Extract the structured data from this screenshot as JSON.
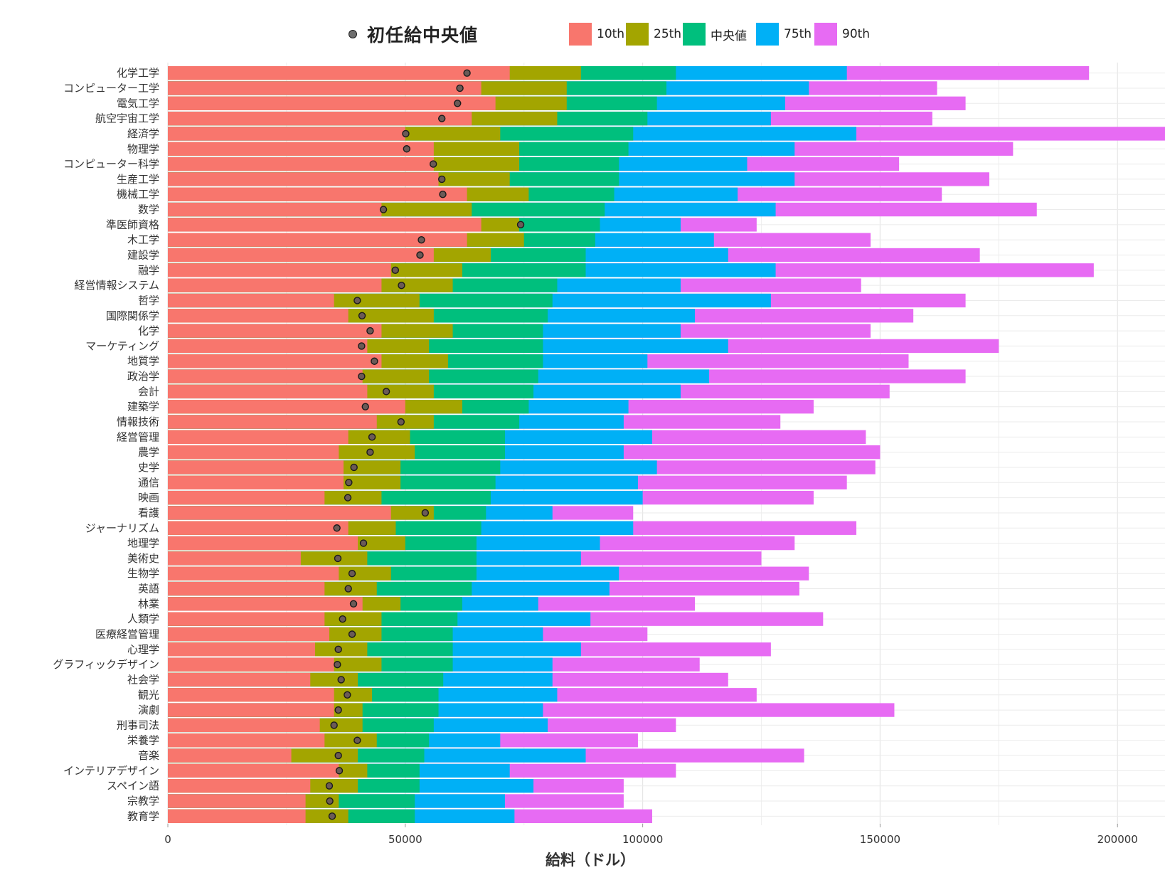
{
  "legend": {
    "dot_label": "初任給中央値",
    "items": [
      {
        "label": "10th",
        "color": "#F8766D"
      },
      {
        "label": "25th",
        "color": "#A3A500"
      },
      {
        "label": "中央値",
        "color": "#00BF7D"
      },
      {
        "label": "75th",
        "color": "#00B0F6"
      },
      {
        "label": "90th",
        "color": "#E76BF3"
      }
    ]
  },
  "chart_data": {
    "type": "bar",
    "orientation": "horizontal",
    "stacked": "overlapping-percentiles",
    "xlabel": "給料（ドル）",
    "ylabel": "",
    "xlim": [
      0,
      210000
    ],
    "x_ticks": [
      "0",
      "50000",
      "100000",
      "150000",
      "200000"
    ],
    "grid": true,
    "legend_position": "top",
    "series_names": [
      "10th",
      "25th",
      "中央値",
      "75th",
      "90th",
      "初任給中央値"
    ],
    "rows": [
      {
        "major": "化学工学",
        "p10": 72000,
        "p25": 87000,
        "p50": 107000,
        "p75": 143000,
        "p90": 194000,
        "start": 63000
      },
      {
        "major": "コンピューター工学",
        "p10": 66000,
        "p25": 84000,
        "p50": 105000,
        "p75": 135000,
        "p90": 162000,
        "start": 61500
      },
      {
        "major": "電気工学",
        "p10": 69000,
        "p25": 84000,
        "p50": 103000,
        "p75": 130000,
        "p90": 168000,
        "start": 61000
      },
      {
        "major": "航空宇宙工学",
        "p10": 64000,
        "p25": 82000,
        "p50": 101000,
        "p75": 127000,
        "p90": 161000,
        "start": 57700
      },
      {
        "major": "経済学",
        "p10": 50000,
        "p25": 70000,
        "p50": 98000,
        "p75": 145000,
        "p90": 210000,
        "start": 50100
      },
      {
        "major": "物理学",
        "p10": 56000,
        "p25": 74000,
        "p50": 97000,
        "p75": 132000,
        "p90": 178000,
        "start": 50300
      },
      {
        "major": "コンピューター科学",
        "p10": 56000,
        "p25": 74000,
        "p50": 95000,
        "p75": 122000,
        "p90": 154000,
        "start": 55900
      },
      {
        "major": "生産工学",
        "p10": 57000,
        "p25": 72000,
        "p50": 95000,
        "p75": 132000,
        "p90": 173000,
        "start": 57700
      },
      {
        "major": "機械工学",
        "p10": 63000,
        "p25": 76000,
        "p50": 94000,
        "p75": 120000,
        "p90": 163000,
        "start": 57900
      },
      {
        "major": "数学",
        "p10": 45000,
        "p25": 64000,
        "p50": 92000,
        "p75": 128000,
        "p90": 183000,
        "start": 45400
      },
      {
        "major": "準医師資格",
        "p10": 66000,
        "p25": 74000,
        "p50": 91000,
        "p75": 108000,
        "p90": 124000,
        "start": 74300
      },
      {
        "major": "木工学",
        "p10": 63000,
        "p25": 75000,
        "p50": 90000,
        "p75": 115000,
        "p90": 148000,
        "start": 53400
      },
      {
        "major": "建設学",
        "p10": 56000,
        "p25": 68000,
        "p50": 88000,
        "p75": 118000,
        "p90": 171000,
        "start": 53100
      },
      {
        "major": "融学",
        "p10": 47000,
        "p25": 62000,
        "p50": 88000,
        "p75": 128000,
        "p90": 195000,
        "start": 47900
      },
      {
        "major": "経営情報システム",
        "p10": 45000,
        "p25": 60000,
        "p50": 82000,
        "p75": 108000,
        "p90": 146000,
        "start": 49200
      },
      {
        "major": "哲学",
        "p10": 35000,
        "p25": 53000,
        "p50": 81000,
        "p75": 127000,
        "p90": 168000,
        "start": 39900
      },
      {
        "major": "国際関係学",
        "p10": 38000,
        "p25": 56000,
        "p50": 80000,
        "p75": 111000,
        "p90": 157000,
        "start": 40900
      },
      {
        "major": "化学",
        "p10": 45000,
        "p25": 60000,
        "p50": 79000,
        "p75": 108000,
        "p90": 148000,
        "start": 42600
      },
      {
        "major": "マーケティング",
        "p10": 42000,
        "p25": 55000,
        "p50": 79000,
        "p75": 118000,
        "p90": 175000,
        "start": 40800
      },
      {
        "major": "地質学",
        "p10": 45000,
        "p25": 59000,
        "p50": 79000,
        "p75": 101000,
        "p90": 156000,
        "start": 43500
      },
      {
        "major": "政治学",
        "p10": 41000,
        "p25": 55000,
        "p50": 78000,
        "p75": 114000,
        "p90": 168000,
        "start": 40800
      },
      {
        "major": "会計",
        "p10": 42000,
        "p25": 56000,
        "p50": 77000,
        "p75": 108000,
        "p90": 152000,
        "start": 46000
      },
      {
        "major": "建築学",
        "p10": 50000,
        "p25": 62000,
        "p50": 76000,
        "p75": 97000,
        "p90": 136000,
        "start": 41600
      },
      {
        "major": "情報技術",
        "p10": 44000,
        "p25": 56000,
        "p50": 74000,
        "p75": 96000,
        "p90": 129000,
        "start": 49100
      },
      {
        "major": "経営管理",
        "p10": 38000,
        "p25": 51000,
        "p50": 71000,
        "p75": 102000,
        "p90": 147000,
        "start": 43000
      },
      {
        "major": "農学",
        "p10": 36000,
        "p25": 52000,
        "p50": 71000,
        "p75": 96000,
        "p90": 150000,
        "start": 42600
      },
      {
        "major": "史学",
        "p10": 37000,
        "p25": 49000,
        "p50": 70000,
        "p75": 103000,
        "p90": 149000,
        "start": 39200
      },
      {
        "major": "通信",
        "p10": 37000,
        "p25": 49000,
        "p50": 69000,
        "p75": 99000,
        "p90": 143000,
        "start": 38100
      },
      {
        "major": "映画",
        "p10": 33000,
        "p25": 45000,
        "p50": 68000,
        "p75": 100000,
        "p90": 136000,
        "start": 37900
      },
      {
        "major": "看護",
        "p10": 47000,
        "p25": 56000,
        "p50": 67000,
        "p75": 81000,
        "p90": 98000,
        "start": 54200
      },
      {
        "major": "ジャーナリズム",
        "p10": 38000,
        "p25": 48000,
        "p50": 66000,
        "p75": 98000,
        "p90": 145000,
        "start": 35600
      },
      {
        "major": "地理学",
        "p10": 40000,
        "p25": 50000,
        "p50": 65000,
        "p75": 91000,
        "p90": 132000,
        "start": 41200
      },
      {
        "major": "美術史",
        "p10": 28000,
        "p25": 42000,
        "p50": 65000,
        "p75": 87000,
        "p90": 125000,
        "start": 35800
      },
      {
        "major": "生物学",
        "p10": 36000,
        "p25": 47000,
        "p50": 65000,
        "p75": 95000,
        "p90": 135000,
        "start": 38800
      },
      {
        "major": "英語",
        "p10": 33000,
        "p25": 44000,
        "p50": 64000,
        "p75": 93000,
        "p90": 133000,
        "start": 38000
      },
      {
        "major": "林業",
        "p10": 41000,
        "p25": 49000,
        "p50": 62000,
        "p75": 78000,
        "p90": 111000,
        "start": 39100
      },
      {
        "major": "人類学",
        "p10": 33000,
        "p25": 45000,
        "p50": 61000,
        "p75": 89000,
        "p90": 138000,
        "start": 36800
      },
      {
        "major": "医療経営管理",
        "p10": 34000,
        "p25": 45000,
        "p50": 60000,
        "p75": 79000,
        "p90": 101000,
        "start": 38800
      },
      {
        "major": "心理学",
        "p10": 31000,
        "p25": 42000,
        "p50": 60000,
        "p75": 87000,
        "p90": 127000,
        "start": 35900
      },
      {
        "major": "グラフィックデザイン",
        "p10": 35000,
        "p25": 45000,
        "p50": 60000,
        "p75": 81000,
        "p90": 112000,
        "start": 35700
      },
      {
        "major": "社会学",
        "p10": 30000,
        "p25": 40000,
        "p50": 58000,
        "p75": 81000,
        "p90": 118000,
        "start": 36500
      },
      {
        "major": "観光",
        "p10": 35000,
        "p25": 43000,
        "p50": 57000,
        "p75": 82000,
        "p90": 124000,
        "start": 37800
      },
      {
        "major": "演劇",
        "p10": 35000,
        "p25": 41000,
        "p50": 57000,
        "p75": 79000,
        "p90": 153000,
        "start": 35900
      },
      {
        "major": "刑事司法",
        "p10": 32000,
        "p25": 41000,
        "p50": 56000,
        "p75": 80000,
        "p90": 107000,
        "start": 35000
      },
      {
        "major": "栄養学",
        "p10": 33000,
        "p25": 44000,
        "p50": 55000,
        "p75": 70000,
        "p90": 99000,
        "start": 39900
      },
      {
        "major": "音楽",
        "p10": 26000,
        "p25": 40000,
        "p50": 54000,
        "p75": 88000,
        "p90": 134000,
        "start": 35900
      },
      {
        "major": "インテリアデザイン",
        "p10": 36000,
        "p25": 42000,
        "p50": 53000,
        "p75": 72000,
        "p90": 107000,
        "start": 36100
      },
      {
        "major": "スペイン語",
        "p10": 30000,
        "p25": 40000,
        "p50": 53000,
        "p75": 77000,
        "p90": 96000,
        "start": 34000
      },
      {
        "major": "宗教学",
        "p10": 29000,
        "p25": 36000,
        "p50": 52000,
        "p75": 71000,
        "p90": 96000,
        "start": 34100
      },
      {
        "major": "教育学",
        "p10": 29000,
        "p25": 38000,
        "p50": 52000,
        "p75": 73000,
        "p90": 102000,
        "start": 34600
      }
    ]
  }
}
